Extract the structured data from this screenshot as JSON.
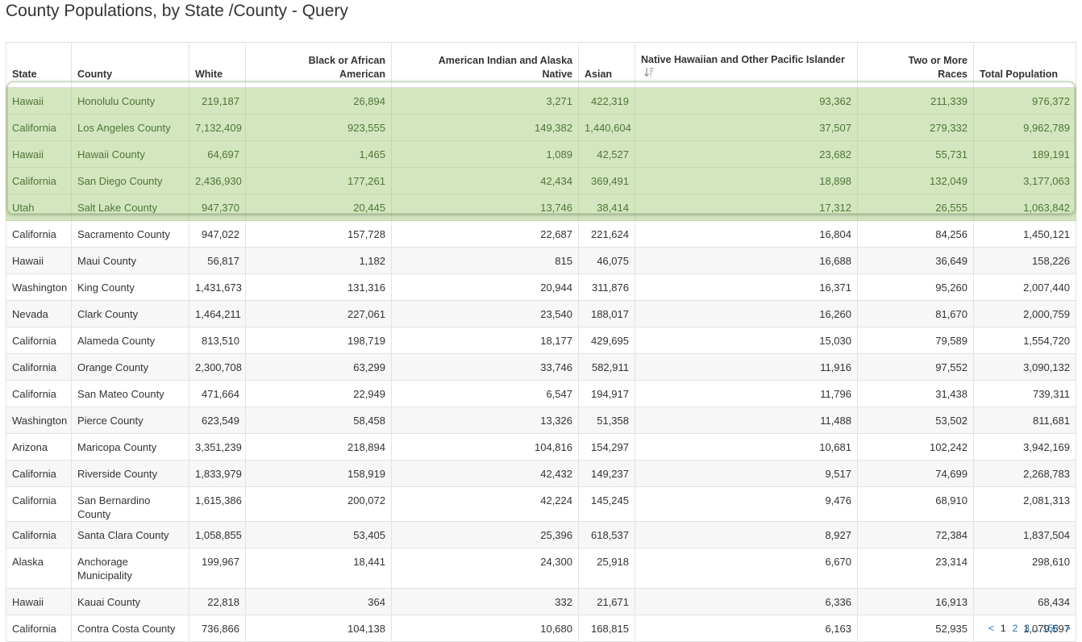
{
  "title": "County Populations, by State /County - Query",
  "columns": {
    "state": "State",
    "county": "County",
    "white": "White",
    "black": "Black or African American",
    "aian": "American Indian and Alaska Native",
    "asian": "Asian",
    "nhpi": "Native Hawaiian and Other Pacific Islander",
    "two": "Two or More Races",
    "total": "Total Population"
  },
  "sort_icon": "sort-descending-icon",
  "rows": [
    {
      "state": "Hawaii",
      "county": "Honolulu County",
      "white": "219,187",
      "black": "26,894",
      "aian": "3,271",
      "asian": "422,319",
      "nhpi": "93,362",
      "two": "211,339",
      "total": "976,372"
    },
    {
      "state": "California",
      "county": "Los Angeles County",
      "white": "7,132,409",
      "black": "923,555",
      "aian": "149,382",
      "asian": "1,440,604",
      "nhpi": "37,507",
      "two": "279,332",
      "total": "9,962,789"
    },
    {
      "state": "Hawaii",
      "county": "Hawaii County",
      "white": "64,697",
      "black": "1,465",
      "aian": "1,089",
      "asian": "42,527",
      "nhpi": "23,682",
      "two": "55,731",
      "total": "189,191"
    },
    {
      "state": "California",
      "county": "San Diego County",
      "white": "2,436,930",
      "black": "177,261",
      "aian": "42,434",
      "asian": "369,491",
      "nhpi": "18,898",
      "two": "132,049",
      "total": "3,177,063"
    },
    {
      "state": "Utah",
      "county": "Salt Lake County",
      "white": "947,370",
      "black": "20,445",
      "aian": "13,746",
      "asian": "38,414",
      "nhpi": "17,312",
      "two": "26,555",
      "total": "1,063,842"
    },
    {
      "state": "California",
      "county": "Sacramento County",
      "white": "947,022",
      "black": "157,728",
      "aian": "22,687",
      "asian": "221,624",
      "nhpi": "16,804",
      "two": "84,256",
      "total": "1,450,121"
    },
    {
      "state": "Hawaii",
      "county": "Maui County",
      "white": "56,817",
      "black": "1,182",
      "aian": "815",
      "asian": "46,075",
      "nhpi": "16,688",
      "two": "36,649",
      "total": "158,226"
    },
    {
      "state": "Washington",
      "county": "King County",
      "white": "1,431,673",
      "black": "131,316",
      "aian": "20,944",
      "asian": "311,876",
      "nhpi": "16,371",
      "two": "95,260",
      "total": "2,007,440"
    },
    {
      "state": "Nevada",
      "county": "Clark County",
      "white": "1,464,211",
      "black": "227,061",
      "aian": "23,540",
      "asian": "188,017",
      "nhpi": "16,260",
      "two": "81,670",
      "total": "2,000,759"
    },
    {
      "state": "California",
      "county": "Alameda County",
      "white": "813,510",
      "black": "198,719",
      "aian": "18,177",
      "asian": "429,695",
      "nhpi": "15,030",
      "two": "79,589",
      "total": "1,554,720"
    },
    {
      "state": "California",
      "county": "Orange County",
      "white": "2,300,708",
      "black": "63,299",
      "aian": "33,746",
      "asian": "582,911",
      "nhpi": "11,916",
      "two": "97,552",
      "total": "3,090,132"
    },
    {
      "state": "California",
      "county": "San Mateo County",
      "white": "471,664",
      "black": "22,949",
      "aian": "6,547",
      "asian": "194,917",
      "nhpi": "11,796",
      "two": "31,438",
      "total": "739,311"
    },
    {
      "state": "Washington",
      "county": "Pierce County",
      "white": "623,549",
      "black": "58,458",
      "aian": "13,326",
      "asian": "51,358",
      "nhpi": "11,488",
      "two": "53,502",
      "total": "811,681"
    },
    {
      "state": "Arizona",
      "county": "Maricopa County",
      "white": "3,351,239",
      "black": "218,894",
      "aian": "104,816",
      "asian": "154,297",
      "nhpi": "10,681",
      "two": "102,242",
      "total": "3,942,169"
    },
    {
      "state": "California",
      "county": "Riverside County",
      "white": "1,833,979",
      "black": "158,919",
      "aian": "42,432",
      "asian": "149,237",
      "nhpi": "9,517",
      "two": "74,699",
      "total": "2,268,783"
    },
    {
      "state": "California",
      "county": "San Bernardino County",
      "white": "1,615,386",
      "black": "200,072",
      "aian": "42,224",
      "asian": "145,245",
      "nhpi": "9,476",
      "two": "68,910",
      "total": "2,081,313"
    },
    {
      "state": "California",
      "county": "Santa Clara County",
      "white": "1,058,855",
      "black": "53,405",
      "aian": "25,396",
      "asian": "618,537",
      "nhpi": "8,927",
      "two": "72,384",
      "total": "1,837,504"
    },
    {
      "state": "Alaska",
      "county": "Anchorage Municipality",
      "white": "199,967",
      "black": "18,441",
      "aian": "24,300",
      "asian": "25,918",
      "nhpi": "6,670",
      "two": "23,314",
      "total": "298,610"
    },
    {
      "state": "Hawaii",
      "county": "Kauai County",
      "white": "22,818",
      "black": "364",
      "aian": "332",
      "asian": "21,671",
      "nhpi": "6,336",
      "two": "16,913",
      "total": "68,434"
    },
    {
      "state": "California",
      "county": "Contra Costa County",
      "white": "736,866",
      "black": "104,138",
      "aian": "10,680",
      "asian": "168,815",
      "nhpi": "6,163",
      "two": "52,935",
      "total": "1,079,597"
    }
  ],
  "highlighted_rows": 5,
  "pagination": {
    "prev": "<",
    "pages": [
      "1",
      "2",
      "3"
    ],
    "current": "1",
    "ellipsis": "...",
    "last": "158",
    "next": ">"
  },
  "colors": {
    "highlight_bg": "#d3e6c0",
    "highlight_text": "#4f7535",
    "link": "#2a6fb0"
  }
}
